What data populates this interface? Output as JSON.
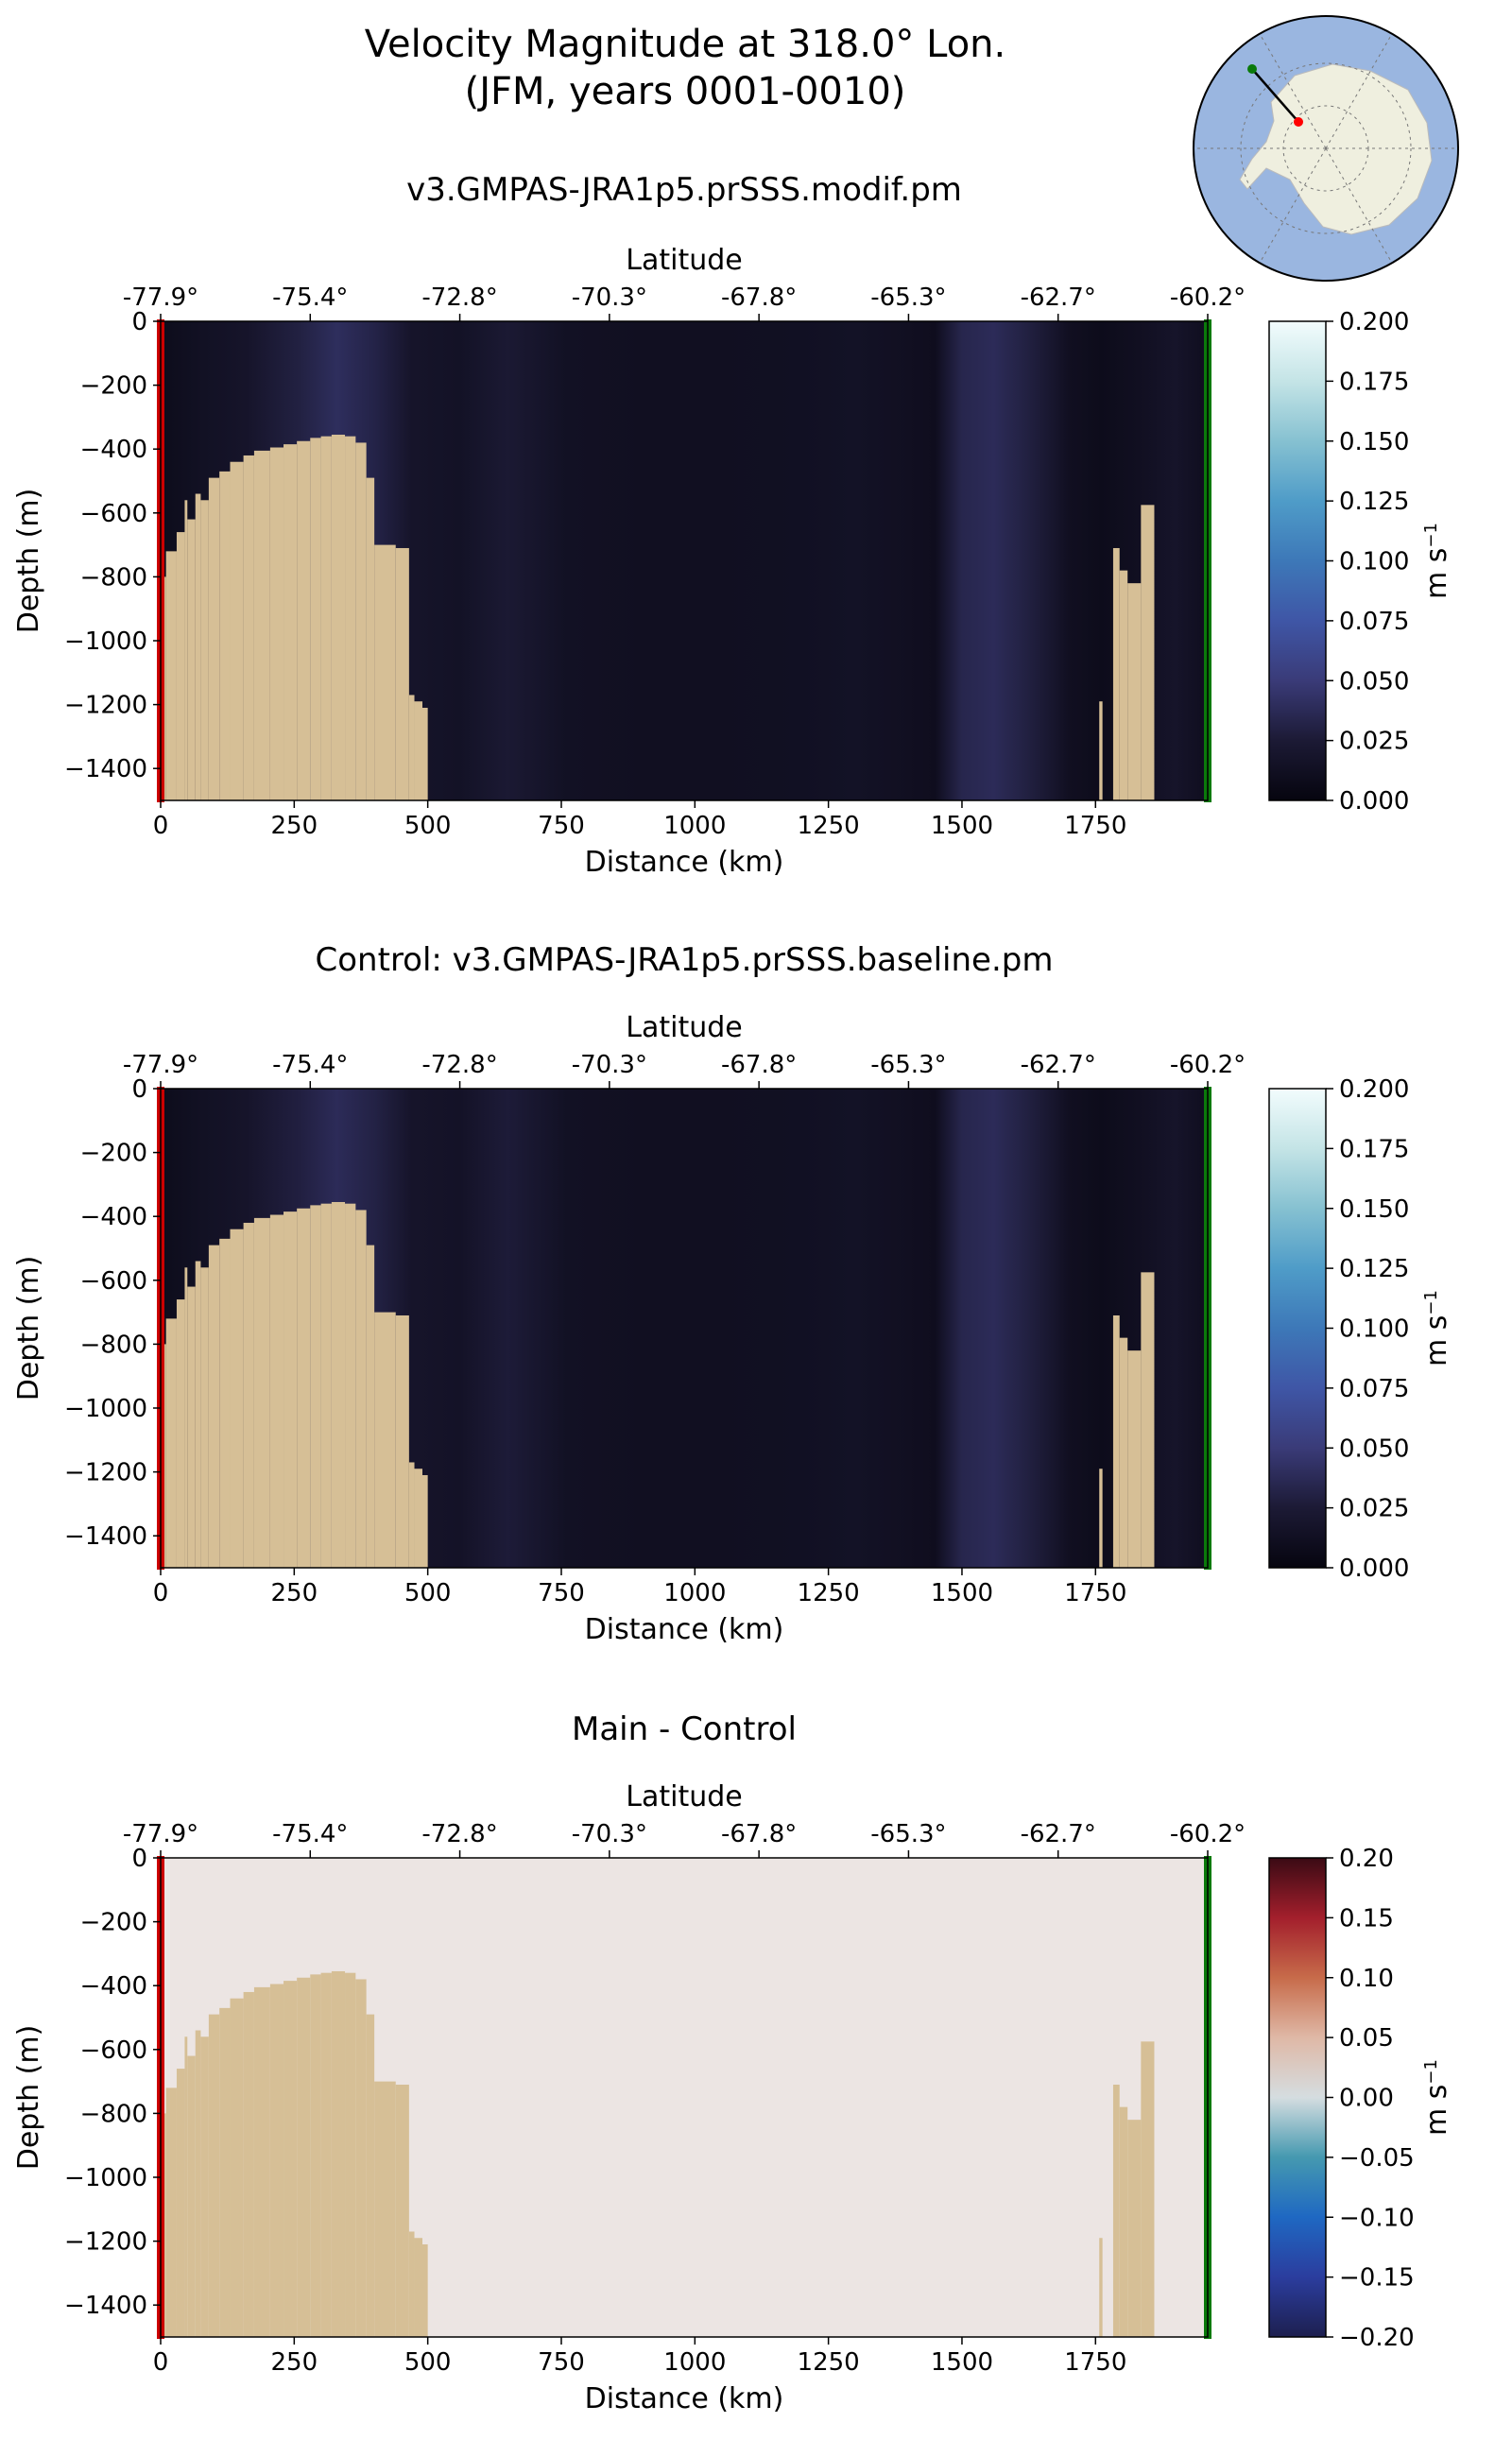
{
  "figure": {
    "title_line1": "Velocity Magnitude at 318.0° Lon.",
    "title_line2": "(JFM, years 0001-0010)"
  },
  "chart_data": [
    {
      "type": "heatmap",
      "title": "v3.GMPAS-JRA1p5.prSSS.modif.pm",
      "xlabel": "Distance (km)",
      "ylabel": "Depth (m)",
      "top_axis_label": "Latitude",
      "xlim": [
        0,
        1960
      ],
      "ylim": [
        -1500,
        0
      ],
      "x_ticks": [
        0,
        250,
        500,
        750,
        1000,
        1250,
        1500,
        1750
      ],
      "x_tick_labels": [
        "0",
        "250",
        "500",
        "750",
        "1000",
        "1250",
        "1500",
        "1750"
      ],
      "y_ticks": [
        0,
        -200,
        -400,
        -600,
        -800,
        -1000,
        -1200,
        -1400
      ],
      "y_tick_labels": [
        "0",
        "−200",
        "−400",
        "−600",
        "−800",
        "−1000",
        "−1200",
        "−1400"
      ],
      "lat_ticks_km": [
        0,
        280,
        560,
        840,
        1120,
        1400,
        1680,
        1960
      ],
      "lat_tick_labels": [
        "-77.9°",
        "-75.4°",
        "-72.8°",
        "-70.3°",
        "-67.8°",
        "-65.3°",
        "-62.7°",
        "-60.2°"
      ],
      "colorbar": {
        "label": "m s",
        "label_sup": "−1",
        "range": [
          0,
          0.2
        ],
        "tick_labels": [
          "0.000",
          "0.025",
          "0.050",
          "0.075",
          "0.100",
          "0.125",
          "0.150",
          "0.175",
          "0.200"
        ],
        "colors": [
          "#06050f",
          "#1c1a35",
          "#3a3b78",
          "#3f56a6",
          "#3d78b8",
          "#4f9cc8",
          "#86c1d1",
          "#c4e4e6",
          "#f2fcfd"
        ]
      },
      "velocity_profile_km": [
        0,
        80,
        160,
        260,
        330,
        400,
        470,
        560,
        650,
        760,
        900,
        1050,
        1200,
        1300,
        1400,
        1450,
        1500,
        1560,
        1620,
        1700,
        1760,
        1830,
        1900,
        1960
      ],
      "velocity_profile_values": [
        0.008,
        0.014,
        0.018,
        0.03,
        0.04,
        0.032,
        0.018,
        0.015,
        0.024,
        0.014,
        0.012,
        0.012,
        0.013,
        0.015,
        0.012,
        0.01,
        0.034,
        0.038,
        0.03,
        0.012,
        0.008,
        0.012,
        0.018,
        0.01
      ],
      "land_color": "#d6bf96",
      "section_start_color": "#cc0000",
      "section_end_color": "#0a7a0a",
      "bathymetry": [
        {
          "x0": 0,
          "x1": 10,
          "top": -800
        },
        {
          "x0": 10,
          "x1": 30,
          "top": -720
        },
        {
          "x0": 30,
          "x1": 45,
          "top": -660
        },
        {
          "x0": 45,
          "x1": 50,
          "top": -560
        },
        {
          "x0": 50,
          "x1": 65,
          "top": -620
        },
        {
          "x0": 65,
          "x1": 75,
          "top": -540
        },
        {
          "x0": 75,
          "x1": 90,
          "top": -560
        },
        {
          "x0": 90,
          "x1": 110,
          "top": -490
        },
        {
          "x0": 110,
          "x1": 130,
          "top": -470
        },
        {
          "x0": 130,
          "x1": 155,
          "top": -440
        },
        {
          "x0": 155,
          "x1": 175,
          "top": -420
        },
        {
          "x0": 175,
          "x1": 205,
          "top": -405
        },
        {
          "x0": 205,
          "x1": 230,
          "top": -395
        },
        {
          "x0": 230,
          "x1": 255,
          "top": -385
        },
        {
          "x0": 255,
          "x1": 280,
          "top": -375
        },
        {
          "x0": 280,
          "x1": 300,
          "top": -365
        },
        {
          "x0": 300,
          "x1": 320,
          "top": -360
        },
        {
          "x0": 320,
          "x1": 345,
          "top": -355
        },
        {
          "x0": 345,
          "x1": 365,
          "top": -360
        },
        {
          "x0": 365,
          "x1": 385,
          "top": -380
        },
        {
          "x0": 385,
          "x1": 400,
          "top": -490
        },
        {
          "x0": 400,
          "x1": 440,
          "top": -700
        },
        {
          "x0": 440,
          "x1": 465,
          "top": -710
        },
        {
          "x0": 465,
          "x1": 475,
          "top": -1170
        },
        {
          "x0": 475,
          "x1": 490,
          "top": -1190
        },
        {
          "x0": 490,
          "x1": 500,
          "top": -1210
        },
        {
          "x0": 1757,
          "x1": 1763,
          "top": -1190
        },
        {
          "x0": 1783,
          "x1": 1795,
          "top": -710
        },
        {
          "x0": 1795,
          "x1": 1810,
          "top": -780
        },
        {
          "x0": 1810,
          "x1": 1835,
          "top": -820
        },
        {
          "x0": 1835,
          "x1": 1860,
          "top": -575
        }
      ]
    },
    {
      "type": "heatmap",
      "title": "Control: v3.GMPAS-JRA1p5.prSSS.baseline.pm",
      "xlabel": "Distance (km)",
      "ylabel": "Depth (m)",
      "top_axis_label": "Latitude",
      "xlim": [
        0,
        1960
      ],
      "ylim": [
        -1500,
        0
      ],
      "x_ticks": [
        0,
        250,
        500,
        750,
        1000,
        1250,
        1500,
        1750
      ],
      "x_tick_labels": [
        "0",
        "250",
        "500",
        "750",
        "1000",
        "1250",
        "1500",
        "1750"
      ],
      "y_ticks": [
        0,
        -200,
        -400,
        -600,
        -800,
        -1000,
        -1200,
        -1400
      ],
      "y_tick_labels": [
        "0",
        "−200",
        "−400",
        "−600",
        "−800",
        "−1000",
        "−1200",
        "−1400"
      ],
      "lat_ticks_km": [
        0,
        280,
        560,
        840,
        1120,
        1400,
        1680,
        1960
      ],
      "lat_tick_labels": [
        "-77.9°",
        "-75.4°",
        "-72.8°",
        "-70.3°",
        "-67.8°",
        "-65.3°",
        "-62.7°",
        "-60.2°"
      ],
      "colorbar": {
        "label": "m s",
        "label_sup": "−1",
        "range": [
          0,
          0.2
        ],
        "tick_labels": [
          "0.000",
          "0.025",
          "0.050",
          "0.075",
          "0.100",
          "0.125",
          "0.150",
          "0.175",
          "0.200"
        ],
        "colors": [
          "#06050f",
          "#1c1a35",
          "#3a3b78",
          "#3f56a6",
          "#3d78b8",
          "#4f9cc8",
          "#86c1d1",
          "#c4e4e6",
          "#f2fcfd"
        ]
      },
      "velocity_profile_km": [
        0,
        80,
        160,
        260,
        330,
        400,
        470,
        560,
        650,
        760,
        900,
        1050,
        1200,
        1300,
        1400,
        1450,
        1500,
        1560,
        1620,
        1700,
        1760,
        1830,
        1900,
        1960
      ],
      "velocity_profile_values": [
        0.008,
        0.014,
        0.018,
        0.029,
        0.038,
        0.031,
        0.018,
        0.016,
        0.026,
        0.014,
        0.012,
        0.012,
        0.013,
        0.015,
        0.012,
        0.01,
        0.034,
        0.038,
        0.03,
        0.012,
        0.008,
        0.012,
        0.018,
        0.01
      ],
      "land_color": "#d6bf96",
      "section_start_color": "#cc0000",
      "section_end_color": "#0a7a0a",
      "bathymetry": [
        {
          "x0": 0,
          "x1": 10,
          "top": -800
        },
        {
          "x0": 10,
          "x1": 30,
          "top": -720
        },
        {
          "x0": 30,
          "x1": 45,
          "top": -660
        },
        {
          "x0": 45,
          "x1": 50,
          "top": -560
        },
        {
          "x0": 50,
          "x1": 65,
          "top": -620
        },
        {
          "x0": 65,
          "x1": 75,
          "top": -540
        },
        {
          "x0": 75,
          "x1": 90,
          "top": -560
        },
        {
          "x0": 90,
          "x1": 110,
          "top": -490
        },
        {
          "x0": 110,
          "x1": 130,
          "top": -470
        },
        {
          "x0": 130,
          "x1": 155,
          "top": -440
        },
        {
          "x0": 155,
          "x1": 175,
          "top": -420
        },
        {
          "x0": 175,
          "x1": 205,
          "top": -405
        },
        {
          "x0": 205,
          "x1": 230,
          "top": -395
        },
        {
          "x0": 230,
          "x1": 255,
          "top": -385
        },
        {
          "x0": 255,
          "x1": 280,
          "top": -375
        },
        {
          "x0": 280,
          "x1": 300,
          "top": -365
        },
        {
          "x0": 300,
          "x1": 320,
          "top": -360
        },
        {
          "x0": 320,
          "x1": 345,
          "top": -355
        },
        {
          "x0": 345,
          "x1": 365,
          "top": -360
        },
        {
          "x0": 365,
          "x1": 385,
          "top": -380
        },
        {
          "x0": 385,
          "x1": 400,
          "top": -490
        },
        {
          "x0": 400,
          "x1": 440,
          "top": -700
        },
        {
          "x0": 440,
          "x1": 465,
          "top": -710
        },
        {
          "x0": 465,
          "x1": 475,
          "top": -1170
        },
        {
          "x0": 475,
          "x1": 490,
          "top": -1190
        },
        {
          "x0": 490,
          "x1": 500,
          "top": -1210
        },
        {
          "x0": 1757,
          "x1": 1763,
          "top": -1190
        },
        {
          "x0": 1783,
          "x1": 1795,
          "top": -710
        },
        {
          "x0": 1795,
          "x1": 1810,
          "top": -780
        },
        {
          "x0": 1810,
          "x1": 1835,
          "top": -820
        },
        {
          "x0": 1835,
          "x1": 1860,
          "top": -575
        }
      ]
    },
    {
      "type": "heatmap",
      "title": "Main - Control",
      "xlabel": "Distance (km)",
      "ylabel": "Depth (m)",
      "top_axis_label": "Latitude",
      "xlim": [
        0,
        1960
      ],
      "ylim": [
        -1500,
        0
      ],
      "x_ticks": [
        0,
        250,
        500,
        750,
        1000,
        1250,
        1500,
        1750
      ],
      "x_tick_labels": [
        "0",
        "250",
        "500",
        "750",
        "1000",
        "1250",
        "1500",
        "1750"
      ],
      "y_ticks": [
        0,
        -200,
        -400,
        -600,
        -800,
        -1000,
        -1200,
        -1400
      ],
      "y_tick_labels": [
        "0",
        "−200",
        "−400",
        "−600",
        "−800",
        "−1000",
        "−1200",
        "−1400"
      ],
      "lat_ticks_km": [
        0,
        280,
        560,
        840,
        1120,
        1400,
        1680,
        1960
      ],
      "lat_tick_labels": [
        "-77.9°",
        "-75.4°",
        "-72.8°",
        "-70.3°",
        "-67.8°",
        "-65.3°",
        "-62.7°",
        "-60.2°"
      ],
      "colorbar": {
        "label": "m s",
        "label_sup": "−1",
        "range": [
          -0.2,
          0.2
        ],
        "tick_labels": [
          "−0.20",
          "−0.15",
          "−0.10",
          "−0.05",
          "0.00",
          "0.05",
          "0.10",
          "0.15",
          "0.20"
        ],
        "colors": [
          "#1d1f4f",
          "#2b3d9e",
          "#1f68c2",
          "#4599b0",
          "#d5dde0",
          "#dfb8a6",
          "#c76b4a",
          "#a31f2c",
          "#3a0a14"
        ]
      },
      "diff_field_value": 0.0005,
      "diff_field_color": "#ece5e3",
      "land_color": "#d6bf96",
      "section_start_color": "#cc0000",
      "section_end_color": "#0a7a0a",
      "bathymetry": [
        {
          "x0": 0,
          "x1": 10,
          "top": -800
        },
        {
          "x0": 10,
          "x1": 30,
          "top": -720
        },
        {
          "x0": 30,
          "x1": 45,
          "top": -660
        },
        {
          "x0": 45,
          "x1": 50,
          "top": -560
        },
        {
          "x0": 50,
          "x1": 65,
          "top": -620
        },
        {
          "x0": 65,
          "x1": 75,
          "top": -540
        },
        {
          "x0": 75,
          "x1": 90,
          "top": -560
        },
        {
          "x0": 90,
          "x1": 110,
          "top": -490
        },
        {
          "x0": 110,
          "x1": 130,
          "top": -470
        },
        {
          "x0": 130,
          "x1": 155,
          "top": -440
        },
        {
          "x0": 155,
          "x1": 175,
          "top": -420
        },
        {
          "x0": 175,
          "x1": 205,
          "top": -405
        },
        {
          "x0": 205,
          "x1": 230,
          "top": -395
        },
        {
          "x0": 230,
          "x1": 255,
          "top": -385
        },
        {
          "x0": 255,
          "x1": 280,
          "top": -375
        },
        {
          "x0": 280,
          "x1": 300,
          "top": -365
        },
        {
          "x0": 300,
          "x1": 320,
          "top": -360
        },
        {
          "x0": 320,
          "x1": 345,
          "top": -355
        },
        {
          "x0": 345,
          "x1": 365,
          "top": -360
        },
        {
          "x0": 365,
          "x1": 385,
          "top": -380
        },
        {
          "x0": 385,
          "x1": 400,
          "top": -490
        },
        {
          "x0": 400,
          "x1": 440,
          "top": -700
        },
        {
          "x0": 440,
          "x1": 465,
          "top": -710
        },
        {
          "x0": 465,
          "x1": 475,
          "top": -1170
        },
        {
          "x0": 475,
          "x1": 490,
          "top": -1190
        },
        {
          "x0": 490,
          "x1": 500,
          "top": -1210
        },
        {
          "x0": 1757,
          "x1": 1763,
          "top": -1190
        },
        {
          "x0": 1783,
          "x1": 1795,
          "top": -710
        },
        {
          "x0": 1795,
          "x1": 1810,
          "top": -780
        },
        {
          "x0": 1810,
          "x1": 1835,
          "top": -820
        },
        {
          "x0": 1835,
          "x1": 1860,
          "top": -575
        }
      ]
    }
  ],
  "inset_map": {
    "ocean_color": "#9ab6e0",
    "land_color": "#efefdf",
    "start_marker_color": "#ff0000",
    "end_marker_color": "#0a7a0a"
  }
}
